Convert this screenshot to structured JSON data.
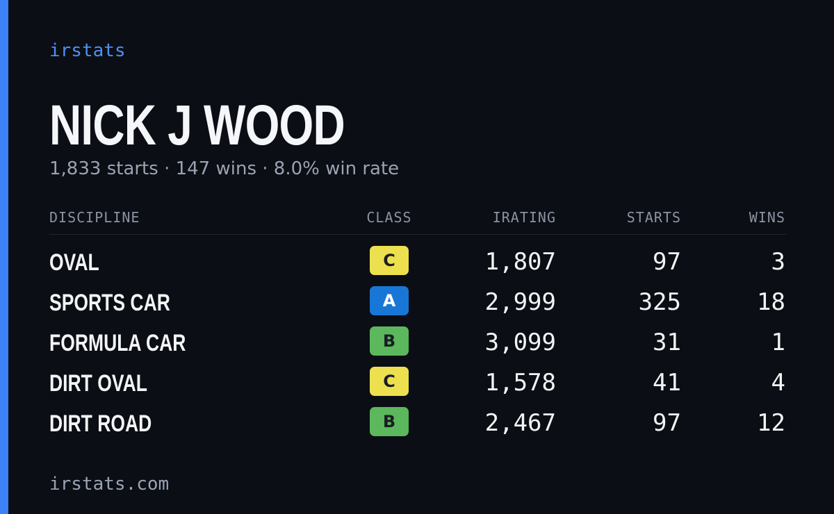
{
  "brand": "irstats",
  "driver": {
    "name": "NICK J WOOD",
    "summary": "1,833 starts · 147 wins · 8.0% win rate"
  },
  "table": {
    "headers": [
      "DISCIPLINE",
      "CLASS",
      "IRATING",
      "STARTS",
      "WINS"
    ],
    "rows": [
      {
        "discipline": "OVAL",
        "class": "C",
        "class_color": "#ece04e",
        "irating": "1,807",
        "starts": "97",
        "wins": "3"
      },
      {
        "discipline": "SPORTS CAR",
        "class": "A",
        "class_color": "#1877d6",
        "irating": "2,999",
        "starts": "325",
        "wins": "18"
      },
      {
        "discipline": "FORMULA CAR",
        "class": "B",
        "class_color": "#5cb85c",
        "irating": "3,099",
        "starts": "31",
        "wins": "1"
      },
      {
        "discipline": "DIRT OVAL",
        "class": "C",
        "class_color": "#ece04e",
        "irating": "1,578",
        "starts": "41",
        "wins": "4"
      },
      {
        "discipline": "DIRT ROAD",
        "class": "B",
        "class_color": "#5cb85c",
        "irating": "2,467",
        "starts": "97",
        "wins": "12"
      }
    ]
  },
  "footer": "irstats.com"
}
